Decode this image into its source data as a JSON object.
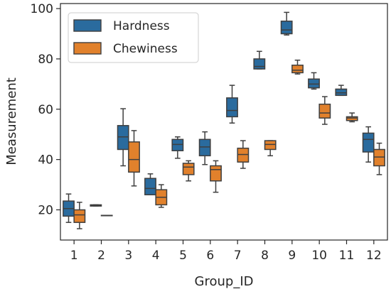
{
  "chart_data": {
    "type": "box",
    "xlabel": "Group_ID",
    "ylabel": "Measurement",
    "categories": [
      "1",
      "2",
      "3",
      "4",
      "5",
      "6",
      "7",
      "8",
      "9",
      "10",
      "11",
      "12"
    ],
    "ylim": [
      8,
      102
    ],
    "yticks": [
      20,
      40,
      60,
      80,
      100
    ],
    "grid": false,
    "legend_position": "top-left",
    "series": [
      {
        "name": "Hardness",
        "color": "#2a6b9e",
        "boxes": [
          {
            "whislo": 15.0,
            "q1": 17.5,
            "med": 20.5,
            "q3": 23.5,
            "whishi": 26.3
          },
          {
            "whislo": 21.5,
            "q1": 21.5,
            "med": 21.8,
            "q3": 22.0,
            "whishi": 22.0
          },
          {
            "whislo": 37.5,
            "q1": 44.0,
            "med": 49.0,
            "q3": 53.5,
            "whishi": 60.2
          },
          {
            "whislo": 26.0,
            "q1": 26.0,
            "med": 28.5,
            "q3": 32.5,
            "whishi": 34.3
          },
          {
            "whislo": 40.5,
            "q1": 43.5,
            "med": 46.0,
            "q3": 48.0,
            "whishi": 49.0
          },
          {
            "whislo": 38.0,
            "q1": 41.5,
            "med": 45.0,
            "q3": 48.0,
            "whishi": 51.0
          },
          {
            "whislo": 54.5,
            "q1": 57.0,
            "med": 59.5,
            "q3": 64.5,
            "whishi": 69.5
          },
          {
            "whislo": 76.0,
            "q1": 76.0,
            "med": 77.0,
            "q3": 80.0,
            "whishi": 83.0
          },
          {
            "whislo": 89.5,
            "q1": 90.0,
            "med": 91.5,
            "q3": 95.0,
            "whishi": 98.5
          },
          {
            "whislo": 68.0,
            "q1": 68.5,
            "med": 70.0,
            "q3": 72.0,
            "whishi": 74.5
          },
          {
            "whislo": 65.5,
            "q1": 65.5,
            "med": 66.5,
            "q3": 68.0,
            "whishi": 69.5
          },
          {
            "whislo": 39.0,
            "q1": 43.0,
            "med": 48.0,
            "q3": 50.5,
            "whishi": 53.0
          }
        ]
      },
      {
        "name": "Chewiness",
        "color": "#e1812c",
        "boxes": [
          {
            "whislo": 12.5,
            "q1": 15.0,
            "med": 18.0,
            "q3": 20.0,
            "whishi": 23.0
          },
          {
            "whislo": 17.8,
            "q1": 17.8,
            "med": 17.8,
            "q3": 17.8,
            "whishi": 17.8
          },
          {
            "whislo": 29.5,
            "q1": 35.0,
            "med": 40.0,
            "q3": 47.0,
            "whishi": 51.5
          },
          {
            "whislo": 21.0,
            "q1": 22.0,
            "med": 25.0,
            "q3": 28.0,
            "whishi": 30.0
          },
          {
            "whislo": 31.5,
            "q1": 34.0,
            "med": 37.0,
            "q3": 38.5,
            "whishi": 39.5
          },
          {
            "whislo": 27.0,
            "q1": 31.5,
            "med": 36.0,
            "q3": 37.5,
            "whishi": 39.5
          },
          {
            "whislo": 36.5,
            "q1": 39.0,
            "med": 42.0,
            "q3": 44.5,
            "whishi": 47.5
          },
          {
            "whislo": 41.5,
            "q1": 44.0,
            "med": 46.0,
            "q3": 47.5,
            "whishi": 47.5
          },
          {
            "whislo": 74.0,
            "q1": 74.5,
            "med": 75.5,
            "q3": 77.5,
            "whishi": 79.5
          },
          {
            "whislo": 54.0,
            "q1": 56.5,
            "med": 58.5,
            "q3": 62.0,
            "whishi": 65.0
          },
          {
            "whislo": 55.0,
            "q1": 55.5,
            "med": 56.5,
            "q3": 57.0,
            "whishi": 58.5
          },
          {
            "whislo": 34.0,
            "q1": 37.5,
            "med": 41.0,
            "q3": 44.0,
            "whishi": 46.5
          }
        ]
      }
    ]
  }
}
